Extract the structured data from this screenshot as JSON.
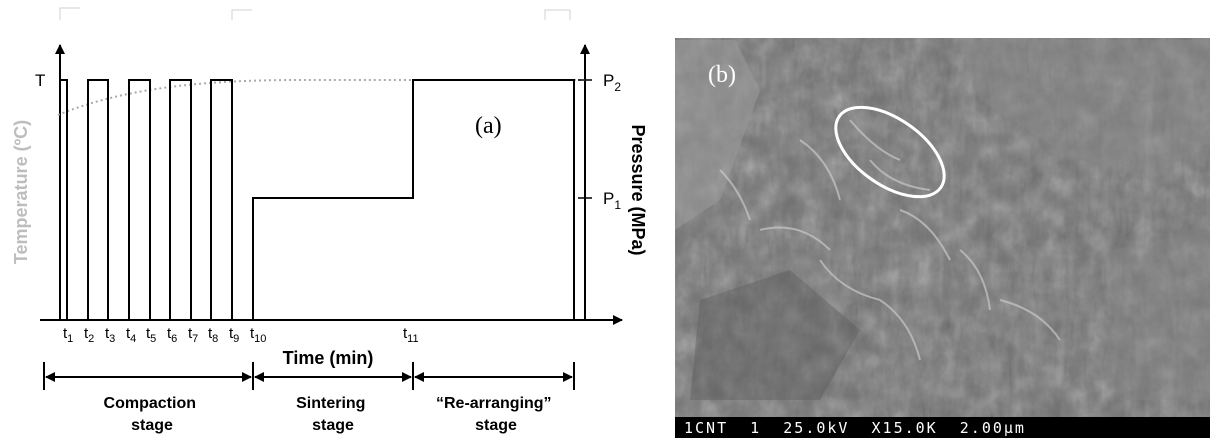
{
  "panel_a": {
    "panel_label": "(a)",
    "left_axis_label": "Temperature (ºC)",
    "left_tick": "T",
    "right_axis_label": "Pressure (MPa)",
    "right_tick_high": "P",
    "right_tick_high_sub": "2",
    "right_tick_low": "P",
    "right_tick_low_sub": "1",
    "x_axis_label": "Time (min)",
    "time_ticks": [
      {
        "base": "t",
        "sub": "1"
      },
      {
        "base": "t",
        "sub": "2"
      },
      {
        "base": "t",
        "sub": "3"
      },
      {
        "base": "t",
        "sub": "4"
      },
      {
        "base": "t",
        "sub": "5"
      },
      {
        "base": "t",
        "sub": "6"
      },
      {
        "base": "t",
        "sub": "7"
      },
      {
        "base": "t",
        "sub": "8"
      },
      {
        "base": "t",
        "sub": "9"
      },
      {
        "base": "t",
        "sub": "10"
      },
      {
        "base": "t",
        "sub": "11"
      }
    ],
    "stages": [
      {
        "line1": "Compaction",
        "line2": "stage"
      },
      {
        "line1": "Sintering",
        "line2": "stage"
      },
      {
        "line1": "“Re-arranging”",
        "line2": "stage"
      }
    ],
    "colors": {
      "pressure_line": "#000000",
      "temperature_line": "#aaaaaa"
    }
  },
  "panel_b": {
    "panel_label": "(b)",
    "info_bar": "1CNT  1  25.0kV  X15.0K  2.00µm",
    "annotation": "ellipse"
  }
}
